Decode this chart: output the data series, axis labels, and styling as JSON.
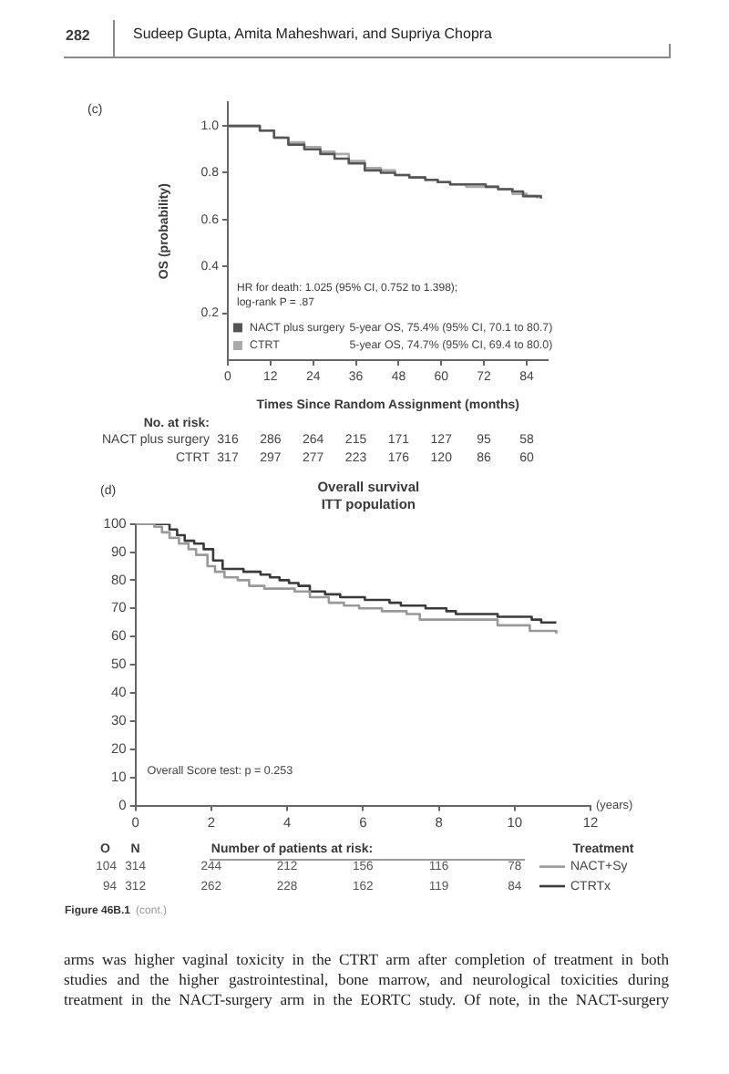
{
  "chart_data": [
    {
      "type": "step",
      "xlabel": "Times Since Random Assignment (months)",
      "ylabel": "OS (probability)",
      "xlim": [
        0,
        90
      ],
      "xticks": [
        0,
        12,
        24,
        36,
        48,
        60,
        72,
        84
      ],
      "ylim": [
        0,
        1.1
      ],
      "yticks": [
        0.2,
        0.4,
        0.6,
        0.8,
        {
          "value": 1,
          "label": "1.0"
        }
      ],
      "grid": false,
      "legend": "bottom left",
      "series": [
        {
          "name": "NACT plus surgery",
          "color": "#555555",
          "x": [
            0,
            6,
            9,
            13,
            17,
            21.5,
            26,
            30,
            34,
            38.5,
            43,
            47,
            51,
            55.5,
            59,
            62.5,
            67,
            72.5,
            76,
            80,
            83,
            88
          ],
          "values": [
            1,
            1,
            0.98,
            0.95,
            0.92,
            0.9,
            0.88,
            0.86,
            0.84,
            0.81,
            0.8,
            0.79,
            0.78,
            0.77,
            0.76,
            0.75,
            0.75,
            0.74,
            0.73,
            0.72,
            0.7,
            0.69
          ]
        },
        {
          "name": "CTRT",
          "color": "#aaaaaa",
          "x": [
            0,
            5,
            9,
            13,
            17,
            21.5,
            26,
            30,
            34,
            38.5,
            43,
            47,
            51,
            55.5,
            59,
            62.5,
            67,
            72.5,
            76,
            80,
            84,
            87
          ],
          "values": [
            1,
            1,
            0.98,
            0.95,
            0.93,
            0.91,
            0.89,
            0.88,
            0.85,
            0.82,
            0.81,
            0.79,
            0.78,
            0.77,
            0.76,
            0.75,
            0.74,
            0.74,
            0.73,
            0.71,
            0.7,
            0.69
          ]
        }
      ],
      "annotations": [
        "282",
        "Sudeep Gupta, Amita Maheshwari, and Supriya Chopra",
        "(c)",
        "HR for death: 1.025 (95% CI, 0.752 to 1.398);",
        "log-rank P = .87",
        "5-year OS, 75.4% (95% CI, 70.1 to 80.7)",
        "5-year OS, 74.7% (95% CI, 69.4 to 80.0)",
        "No. at risk:",
        "316 286 264 215 171 127 95 58",
        "317 297 277 223 176 120 86 60"
      ]
    },
    {
      "type": "step",
      "title": "Overall survival",
      "subtitle": "ITT population",
      "xlabel": "(years)",
      "xlim": [
        0,
        12
      ],
      "xticks": [
        0,
        2,
        4,
        6,
        8,
        10,
        12
      ],
      "ylim": [
        0,
        100
      ],
      "yticks": [
        0,
        10,
        20,
        30,
        40,
        50,
        60,
        70,
        80,
        90,
        100
      ],
      "grid": false,
      "legend": "bottom right",
      "series": [
        {
          "name": "NACT+Sy",
          "color": "#999999",
          "x": [
            0,
            0.5,
            0.7,
            0.9,
            1.15,
            1.4,
            1.6,
            1.9,
            2.1,
            2.35,
            2.7,
            3,
            3.4,
            3.8,
            4.2,
            4.6,
            5.1,
            5.5,
            5.9,
            6.5,
            7.15,
            7.5,
            8.6,
            9.25,
            9.55,
            10.2,
            10.4,
            11.1
          ],
          "values": [
            100,
            99,
            97,
            95,
            93,
            91,
            89,
            85,
            83,
            81,
            80,
            78,
            77,
            77,
            76,
            74,
            72,
            71,
            70,
            69,
            68,
            66,
            66,
            66,
            64,
            64,
            62,
            61
          ]
        },
        {
          "name": "CTRTx",
          "color": "#3a3a3a",
          "x": [
            0,
            0.75,
            0.9,
            1.1,
            1.3,
            1.55,
            1.8,
            2.05,
            2.3,
            2.55,
            2.85,
            3.1,
            3.3,
            3.55,
            3.8,
            4.05,
            4.3,
            4.6,
            5,
            5.4,
            5.7,
            6.05,
            6.4,
            6.7,
            7,
            7.35,
            7.65,
            8,
            8.2,
            8.45,
            9,
            9.55,
            10.2,
            10.45,
            10.7,
            11.1
          ],
          "values": [
            100,
            100,
            98,
            96,
            94,
            93,
            91,
            87,
            84,
            84,
            83,
            83,
            82,
            81,
            80,
            79,
            78,
            76,
            75,
            74,
            74,
            73,
            73,
            72,
            71,
            71,
            70,
            70,
            69,
            68,
            68,
            67,
            67,
            66,
            65,
            65
          ]
        }
      ],
      "annotations": [
        "(d)",
        "Overall Score test: p = 0.253",
        "O",
        "N",
        "Number of patients at risk:",
        "Treatment",
        "104",
        "314 244 212 156 116 78",
        "94",
        "312 262 228 162 119 84",
        "Figure 46B.1",
        "(cont.)",
        "arms was higher vaginal toxicity in the CTRT arm after completion of treatment in both",
        "studies and the higher gastrointestinal, bone marrow, and neurological toxicities during",
        "treatment in the NACT-surgery arm in the EORTC study. Of note, in the NACT-surgery"
      ]
    }
  ]
}
